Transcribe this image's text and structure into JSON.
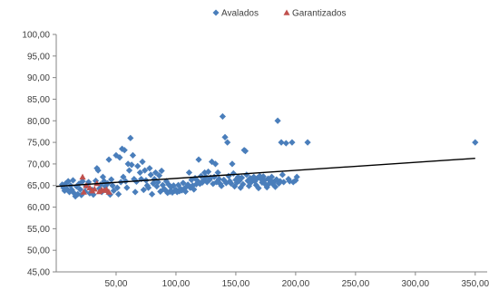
{
  "chart_data": {
    "type": "scatter",
    "title": "",
    "xlabel": "",
    "ylabel": "",
    "xlim": [
      0,
      360
    ],
    "ylim": [
      45,
      100
    ],
    "x_ticks": [
      50,
      100,
      150,
      200,
      250,
      300,
      350
    ],
    "x_tick_labels": [
      "50,00",
      "100,00",
      "150,00",
      "200,00",
      "250,00",
      "300,00",
      "350,00"
    ],
    "y_ticks": [
      45,
      50,
      55,
      60,
      65,
      70,
      75,
      80,
      85,
      90,
      95,
      100
    ],
    "y_tick_labels": [
      "45,00",
      "50,00",
      "55,00",
      "60,00",
      "65,00",
      "70,00",
      "75,00",
      "80,00",
      "85,00",
      "90,00",
      "95,00",
      "100,00"
    ],
    "grid": false,
    "legend_position": "top-center",
    "trendline": {
      "x": [
        0,
        350
      ],
      "y": [
        64.8,
        71.3
      ],
      "color": "#000000"
    },
    "series": [
      {
        "name": "Avalados",
        "marker": "diamond",
        "color": "#4a7ebb",
        "points": [
          [
            5,
            65.2
          ],
          [
            6,
            64.5
          ],
          [
            7,
            63.8
          ],
          [
            8,
            65.5
          ],
          [
            9,
            64.2
          ],
          [
            10,
            66.0
          ],
          [
            11,
            63.5
          ],
          [
            12,
            65.0
          ],
          [
            13,
            64.0
          ],
          [
            14,
            66.2
          ],
          [
            15,
            63.2
          ],
          [
            16,
            62.5
          ],
          [
            17,
            64.8
          ],
          [
            18,
            63.0
          ],
          [
            19,
            65.4
          ],
          [
            20,
            64.1
          ],
          [
            21,
            62.8
          ],
          [
            22,
            66.0
          ],
          [
            24,
            63.6
          ],
          [
            25,
            64.9
          ],
          [
            27,
            65.8
          ],
          [
            28,
            63.2
          ],
          [
            30,
            64.0
          ],
          [
            31,
            62.9
          ],
          [
            33,
            66.1
          ],
          [
            34,
            69.0
          ],
          [
            35,
            68.5
          ],
          [
            36,
            64.3
          ],
          [
            37,
            65.2
          ],
          [
            38,
            63.5
          ],
          [
            39,
            67.0
          ],
          [
            40,
            66.0
          ],
          [
            41,
            64.8
          ],
          [
            42,
            63.9
          ],
          [
            43,
            65.5
          ],
          [
            44,
            71.0
          ],
          [
            45,
            62.9
          ],
          [
            46,
            66.4
          ],
          [
            47,
            65.0
          ],
          [
            48,
            63.8
          ],
          [
            50,
            72.0
          ],
          [
            51,
            64.5
          ],
          [
            52,
            63.0
          ],
          [
            53,
            71.5
          ],
          [
            54,
            65.8
          ],
          [
            55,
            73.5
          ],
          [
            56,
            67.0
          ],
          [
            57,
            73.2
          ],
          [
            58,
            66.0
          ],
          [
            59,
            64.5
          ],
          [
            60,
            70.0
          ],
          [
            61,
            68.5
          ],
          [
            62,
            76.0
          ],
          [
            63,
            69.8
          ],
          [
            64,
            72.0
          ],
          [
            65,
            66.5
          ],
          [
            66,
            63.5
          ],
          [
            67,
            65.9
          ],
          [
            68,
            69.5
          ],
          [
            70,
            68.0
          ],
          [
            71,
            66.5
          ],
          [
            72,
            70.5
          ],
          [
            73,
            64.0
          ],
          [
            74,
            68.5
          ],
          [
            75,
            66.2
          ],
          [
            76,
            65.0
          ],
          [
            77,
            64.5
          ],
          [
            78,
            69.0
          ],
          [
            79,
            67.5
          ],
          [
            80,
            63.0
          ],
          [
            81,
            65.5
          ],
          [
            82,
            66.5
          ],
          [
            83,
            68.0
          ],
          [
            84,
            64.8
          ],
          [
            85,
            65.8
          ],
          [
            86,
            67.3
          ],
          [
            87,
            63.6
          ],
          [
            88,
            68.4
          ],
          [
            89,
            65.1
          ],
          [
            90,
            64.2
          ],
          [
            91,
            64.0
          ],
          [
            92,
            66.0
          ],
          [
            93,
            63.3
          ],
          [
            94,
            65.2
          ],
          [
            95,
            63.6
          ],
          [
            96,
            64.6
          ],
          [
            97,
            63.4
          ],
          [
            98,
            65.0
          ],
          [
            99,
            63.8
          ],
          [
            100,
            64.0
          ],
          [
            101,
            63.5
          ],
          [
            102,
            65.1
          ],
          [
            103,
            63.7
          ],
          [
            104,
            64.2
          ],
          [
            105,
            63.9
          ],
          [
            106,
            65.6
          ],
          [
            107,
            64.3
          ],
          [
            108,
            63.6
          ],
          [
            109,
            64.8
          ],
          [
            110,
            65.2
          ],
          [
            111,
            68.0
          ],
          [
            112,
            64.5
          ],
          [
            113,
            66.3
          ],
          [
            114,
            65.0
          ],
          [
            115,
            64.1
          ],
          [
            116,
            66.7
          ],
          [
            117,
            65.3
          ],
          [
            118,
            66.1
          ],
          [
            119,
            71.0
          ],
          [
            120,
            65.4
          ],
          [
            121,
            67.2
          ],
          [
            122,
            65.7
          ],
          [
            123,
            66.2
          ],
          [
            124,
            68.0
          ],
          [
            125,
            67.0
          ],
          [
            126,
            65.8
          ],
          [
            127,
            68.2
          ],
          [
            128,
            66.3
          ],
          [
            129,
            66.8
          ],
          [
            130,
            70.5
          ],
          [
            131,
            65.4
          ],
          [
            132,
            67.0
          ],
          [
            133,
            70.0
          ],
          [
            134,
            65.8
          ],
          [
            135,
            68.0
          ],
          [
            136,
            66.5
          ],
          [
            137,
            65.4
          ],
          [
            138,
            64.9
          ],
          [
            139,
            81.0
          ],
          [
            140,
            66.3
          ],
          [
            141,
            76.2
          ],
          [
            142,
            65.6
          ],
          [
            143,
            75.0
          ],
          [
            144,
            67.2
          ],
          [
            145,
            66.0
          ],
          [
            146,
            65.5
          ],
          [
            147,
            70.0
          ],
          [
            148,
            67.8
          ],
          [
            149,
            64.8
          ],
          [
            150,
            66.3
          ],
          [
            151,
            65.7
          ],
          [
            152,
            67.0
          ],
          [
            153,
            66.1
          ],
          [
            154,
            64.5
          ],
          [
            155,
            66.8
          ],
          [
            156,
            65.3
          ],
          [
            157,
            73.2
          ],
          [
            158,
            73.0
          ],
          [
            159,
            67.5
          ],
          [
            160,
            66.1
          ],
          [
            161,
            64.9
          ],
          [
            162,
            66.7
          ],
          [
            163,
            65.8
          ],
          [
            164,
            66.4
          ],
          [
            165,
            67.0
          ],
          [
            166,
            66.0
          ],
          [
            167,
            65.1
          ],
          [
            168,
            66.7
          ],
          [
            169,
            64.4
          ],
          [
            170,
            67.2
          ],
          [
            171,
            66.5
          ],
          [
            172,
            65.7
          ],
          [
            173,
            67.1
          ],
          [
            174,
            66.2
          ],
          [
            175,
            65.2
          ],
          [
            176,
            64.6
          ],
          [
            177,
            66.6
          ],
          [
            178,
            65.5
          ],
          [
            179,
            66.2
          ],
          [
            180,
            67.0
          ],
          [
            181,
            65.3
          ],
          [
            182,
            65.9
          ],
          [
            183,
            64.7
          ],
          [
            184,
            66.4
          ],
          [
            185,
            80.0
          ],
          [
            186,
            65.5
          ],
          [
            187,
            66.0
          ],
          [
            188,
            75.0
          ],
          [
            189,
            67.5
          ],
          [
            190,
            65.8
          ],
          [
            192,
            74.8
          ],
          [
            194,
            66.5
          ],
          [
            195,
            66.0
          ],
          [
            197,
            75.0
          ],
          [
            198,
            65.8
          ],
          [
            200,
            66.2
          ],
          [
            201,
            67.0
          ],
          [
            210,
            75.0
          ],
          [
            350,
            75.0
          ]
        ]
      },
      {
        "name": "Garantizados",
        "marker": "triangle",
        "color": "#c0504d",
        "points": [
          [
            22,
            67.0
          ],
          [
            23,
            63.5
          ],
          [
            25,
            65.0
          ],
          [
            28,
            64.5
          ],
          [
            30,
            63.8
          ],
          [
            32,
            64.2
          ],
          [
            34,
            65.5
          ],
          [
            36,
            63.6
          ],
          [
            38,
            64.0
          ],
          [
            40,
            63.9
          ],
          [
            42,
            64.1
          ],
          [
            44,
            63.5
          ]
        ]
      }
    ]
  }
}
